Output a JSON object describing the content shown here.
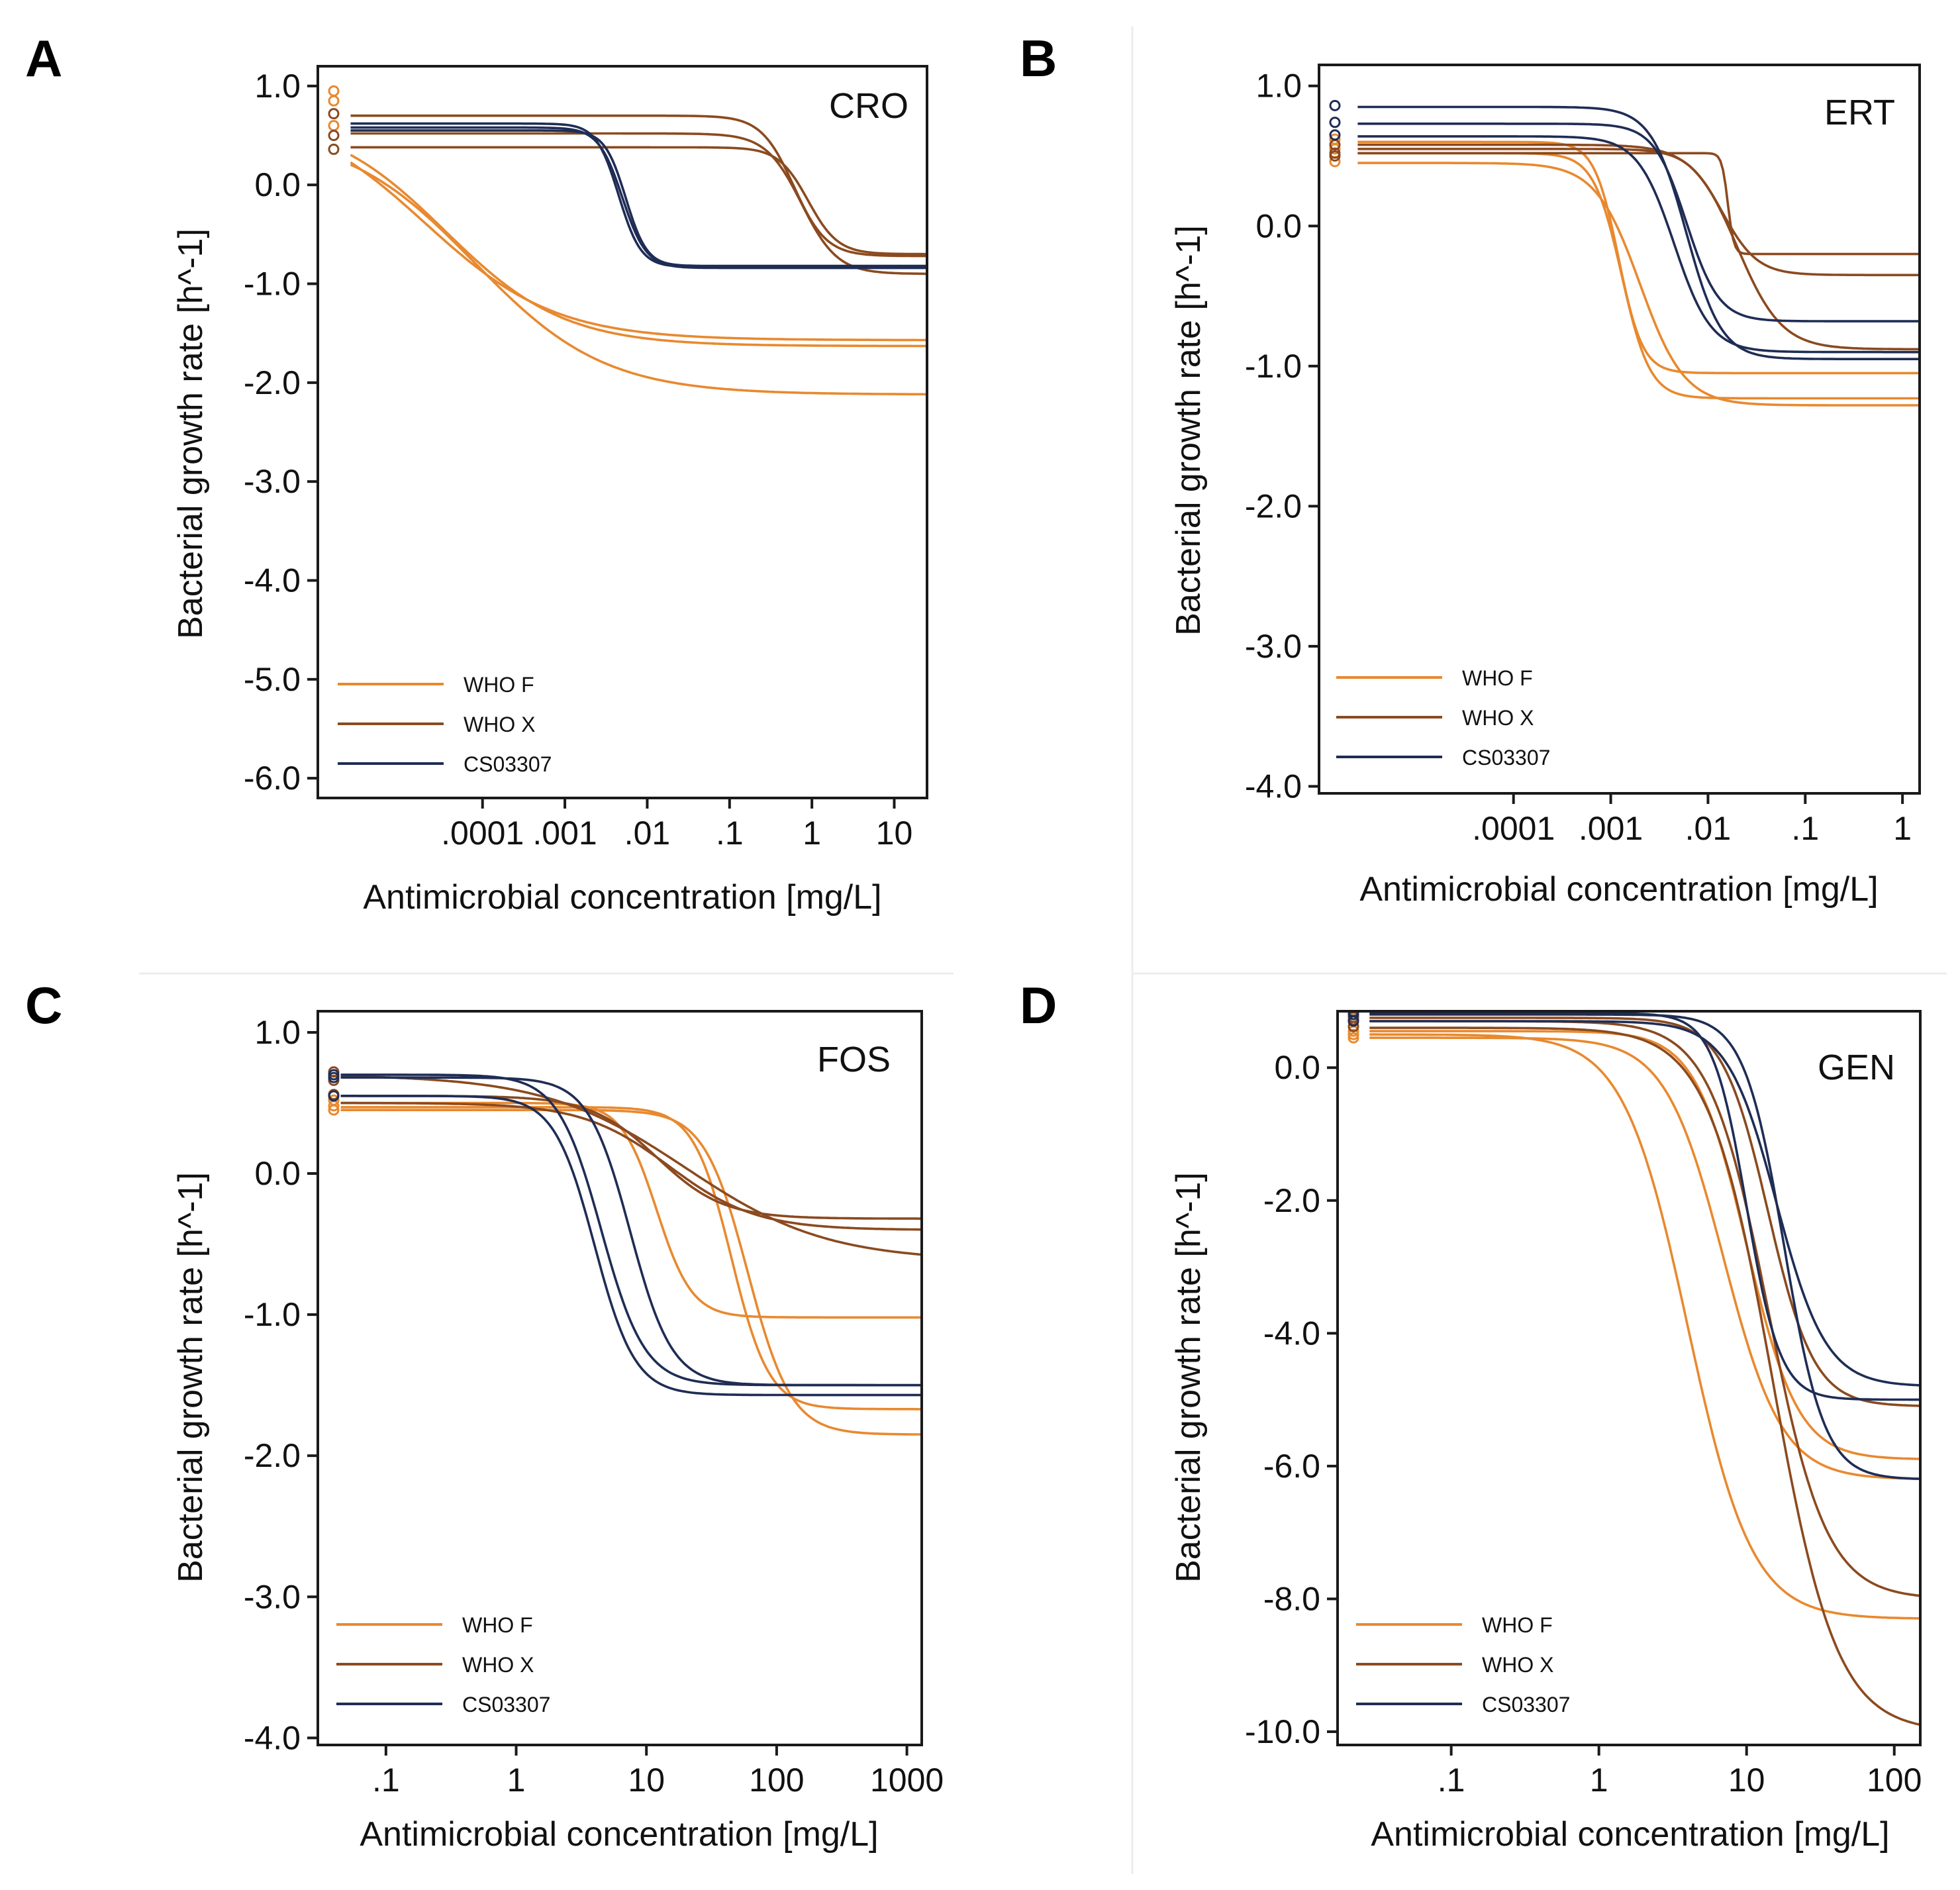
{
  "colors": {
    "who_f": "#e8892f",
    "who_x": "#8b4a1f",
    "cs03307": "#1f2d55"
  },
  "legend": [
    {
      "label": "WHO F",
      "color_key": "who_f"
    },
    {
      "label": "WHO X",
      "color_key": "who_x"
    },
    {
      "label": "CS03307",
      "color_key": "cs03307"
    }
  ],
  "axis_titles": {
    "xlabel": "Antimicrobial concentration [mg/L]",
    "ylabel": "Bacterial growth rate [h^-1]"
  },
  "chart_data": [
    {
      "type": "line",
      "panel_letter": "A",
      "title": "CRO",
      "xscale": "log10",
      "xlim": [
        1e-06,
        25
      ],
      "ylim": [
        -6.2,
        1.2
      ],
      "xticks": [
        {
          "value": 0.0001,
          "label": ".0001"
        },
        {
          "value": 0.001,
          "label": ".001"
        },
        {
          "value": 0.01,
          "label": ".01"
        },
        {
          "value": 0.1,
          "label": ".1"
        },
        {
          "value": 1,
          "label": "1"
        },
        {
          "value": 10,
          "label": "10"
        }
      ],
      "yticks": [
        {
          "value": 1,
          "label": "1.0"
        },
        {
          "value": 0,
          "label": "0.0"
        },
        {
          "value": -1,
          "label": "-1.0"
        },
        {
          "value": -2,
          "label": "-2.0"
        },
        {
          "value": -3,
          "label": "-3.0"
        },
        {
          "value": -4,
          "label": "-4.0"
        },
        {
          "value": -5,
          "label": "-5.0"
        },
        {
          "value": -6,
          "label": "-6.0"
        }
      ],
      "series": [
        {
          "name": "WHO F",
          "group": "who_f",
          "emax_start": 0.8,
          "emin": -1.57,
          "ec50": 2e-05,
          "hill": 0.55,
          "marker": 0.95,
          "x_start": 2.5e-06
        },
        {
          "name": "WHO F",
          "group": "who_f",
          "emax_start": 0.7,
          "emin": -1.63,
          "ec50": 3.5e-05,
          "hill": 0.6,
          "marker": 0.85,
          "x_start": 2.5e-06
        },
        {
          "name": "WHO F",
          "group": "who_f",
          "emax_start": 0.55,
          "emin": -2.12,
          "ec50": 8e-05,
          "hill": 0.55,
          "marker": 0.6,
          "x_start": 2.5e-06
        },
        {
          "name": "WHO X",
          "group": "who_x",
          "emax_start": 0.7,
          "emin": -0.72,
          "ec50": 0.6,
          "hill": 2.2,
          "marker": 0.72,
          "x_start": 2.5e-06
        },
        {
          "name": "WHO X",
          "group": "who_x",
          "emax_start": 0.52,
          "emin": -0.9,
          "ec50": 0.75,
          "hill": 2.0,
          "marker": 0.5,
          "x_start": 2.5e-06
        },
        {
          "name": "WHO X",
          "group": "who_x",
          "emax_start": 0.38,
          "emin": -0.7,
          "ec50": 0.9,
          "hill": 2.4,
          "marker": 0.36,
          "x_start": 2.5e-06
        },
        {
          "name": "CS03307",
          "group": "cs03307",
          "emax_start": 0.62,
          "emin": -0.83,
          "ec50": 0.0045,
          "hill": 3.2,
          "marker": null,
          "x_start": 2.5e-06
        },
        {
          "name": "CS03307",
          "group": "cs03307",
          "emax_start": 0.58,
          "emin": -0.84,
          "ec50": 0.005,
          "hill": 3.0,
          "marker": null,
          "x_start": 2.5e-06
        },
        {
          "name": "CS03307",
          "group": "cs03307",
          "emax_start": 0.55,
          "emin": -0.82,
          "ec50": 0.0055,
          "hill": 3.4,
          "marker": null,
          "x_start": 2.5e-06
        }
      ]
    },
    {
      "type": "line",
      "panel_letter": "B",
      "title": "ERT",
      "xscale": "log10",
      "xlim": [
        1e-06,
        1.5
      ],
      "ylim": [
        -4.05,
        1.15
      ],
      "xticks": [
        {
          "value": 0.0001,
          "label": ".0001"
        },
        {
          "value": 0.001,
          "label": ".001"
        },
        {
          "value": 0.01,
          "label": ".01"
        },
        {
          "value": 0.1,
          "label": ".1"
        },
        {
          "value": 1,
          "label": "1"
        }
      ],
      "yticks": [
        {
          "value": 1,
          "label": "1.0"
        },
        {
          "value": 0,
          "label": "0.0"
        },
        {
          "value": -1,
          "label": "-1.0"
        },
        {
          "value": -2,
          "label": "-2.0"
        },
        {
          "value": -3,
          "label": "-3.0"
        },
        {
          "value": -4,
          "label": "-4.0"
        }
      ],
      "series": [
        {
          "name": "WHO F",
          "group": "who_f",
          "emax_start": 0.6,
          "emin": -1.05,
          "ec50": 0.0012,
          "hill": 3.5,
          "marker": 0.62,
          "x_start": 2.5e-06
        },
        {
          "name": "WHO F",
          "group": "who_f",
          "emax_start": 0.52,
          "emin": -1.23,
          "ec50": 0.0013,
          "hill": 3.0,
          "marker": 0.55,
          "x_start": 2.5e-06
        },
        {
          "name": "WHO F",
          "group": "who_f",
          "emax_start": 0.45,
          "emin": -1.28,
          "ec50": 0.002,
          "hill": 1.9,
          "marker": 0.46,
          "x_start": 2.5e-06
        },
        {
          "name": "WHO X",
          "group": "who_x",
          "emax_start": 0.52,
          "emin": -0.2,
          "ec50": 0.016,
          "hill": 14.0,
          "marker": 0.52,
          "x_start": 2.5e-06
        },
        {
          "name": "WHO X",
          "group": "who_x",
          "emax_start": 0.55,
          "emin": -0.35,
          "ec50": 0.014,
          "hill": 2.4,
          "marker": 0.58,
          "x_start": 2.5e-06
        },
        {
          "name": "WHO X",
          "group": "who_x",
          "emax_start": 0.58,
          "emin": -0.88,
          "ec50": 0.02,
          "hill": 1.9,
          "marker": 0.5,
          "x_start": 2.5e-06
        },
        {
          "name": "CS03307",
          "group": "cs03307",
          "emax_start": 0.85,
          "emin": -0.95,
          "ec50": 0.006,
          "hill": 2.4,
          "marker": 0.86,
          "x_start": 2.5e-06
        },
        {
          "name": "CS03307",
          "group": "cs03307",
          "emax_start": 0.73,
          "emin": -0.68,
          "ec50": 0.006,
          "hill": 2.6,
          "marker": 0.74,
          "x_start": 2.5e-06
        },
        {
          "name": "CS03307",
          "group": "cs03307",
          "emax_start": 0.64,
          "emin": -0.9,
          "ec50": 0.0045,
          "hill": 2.3,
          "marker": 0.65,
          "x_start": 2.5e-06
        }
      ]
    },
    {
      "type": "line",
      "panel_letter": "C",
      "title": "FOS",
      "xscale": "log10",
      "xlim": [
        0.03,
        1300
      ],
      "ylim": [
        -4.05,
        1.15
      ],
      "xticks": [
        {
          "value": 0.1,
          "label": ".1"
        },
        {
          "value": 1,
          "label": "1"
        },
        {
          "value": 10,
          "label": "10"
        },
        {
          "value": 100,
          "label": "100"
        },
        {
          "value": 1000,
          "label": "1000"
        }
      ],
      "yticks": [
        {
          "value": 1,
          "label": "1.0"
        },
        {
          "value": 0,
          "label": "0.0"
        },
        {
          "value": -1,
          "label": "-1.0"
        },
        {
          "value": -2,
          "label": "-2.0"
        },
        {
          "value": -3,
          "label": "-3.0"
        },
        {
          "value": -4,
          "label": "-4.0"
        }
      ],
      "series": [
        {
          "name": "WHO F",
          "group": "who_f",
          "emax_start": 0.5,
          "emin": -1.02,
          "ec50": 12,
          "hill": 3.2,
          "marker": 0.52,
          "x_start": 0.045
        },
        {
          "name": "WHO F",
          "group": "who_f",
          "emax_start": 0.47,
          "emin": -1.67,
          "ec50": 45,
          "hill": 3.0,
          "marker": 0.48,
          "x_start": 0.045
        },
        {
          "name": "WHO F",
          "group": "who_f",
          "emax_start": 0.45,
          "emin": -1.85,
          "ec50": 60,
          "hill": 2.6,
          "marker": 0.45,
          "x_start": 0.045
        },
        {
          "name": "WHO X",
          "group": "who_x",
          "emax_start": 0.55,
          "emin": -0.32,
          "ec50": 12,
          "hill": 1.7,
          "marker": 0.56,
          "x_start": 0.045
        },
        {
          "name": "WHO X",
          "group": "who_x",
          "emax_start": 0.5,
          "emin": -0.4,
          "ec50": 15,
          "hill": 1.3,
          "marker": 0.66,
          "x_start": 0.045
        },
        {
          "name": "WHO X",
          "group": "who_x",
          "emax_start": 0.7,
          "emin": -0.62,
          "ec50": 20,
          "hill": 0.8,
          "marker": 0.72,
          "x_start": 0.045
        },
        {
          "name": "CS03307",
          "group": "cs03307",
          "emax_start": 0.7,
          "emin": -1.5,
          "ec50": 4.5,
          "hill": 2.6,
          "marker": 0.7,
          "x_start": 0.045
        },
        {
          "name": "CS03307",
          "group": "cs03307",
          "emax_start": 0.68,
          "emin": -1.5,
          "ec50": 7.5,
          "hill": 2.7,
          "marker": 0.68,
          "x_start": 0.045
        },
        {
          "name": "CS03307",
          "group": "cs03307",
          "emax_start": 0.55,
          "emin": -1.57,
          "ec50": 4,
          "hill": 2.8,
          "marker": 0.55,
          "x_start": 0.045
        }
      ]
    },
    {
      "type": "line",
      "panel_letter": "D",
      "title": "GEN",
      "xscale": "log10",
      "xlim": [
        0.017,
        150
      ],
      "ylim": [
        -10.2,
        0.85
      ],
      "xticks": [
        {
          "value": 0.1,
          "label": ".1"
        },
        {
          "value": 1,
          "label": "1"
        },
        {
          "value": 10,
          "label": "10"
        },
        {
          "value": 100,
          "label": "100"
        }
      ],
      "yticks": [
        {
          "value": 0,
          "label": "0.0"
        },
        {
          "value": -2,
          "label": "-2.0"
        },
        {
          "value": -4,
          "label": "-4.0"
        },
        {
          "value": -6,
          "label": "-6.0"
        },
        {
          "value": -8,
          "label": "-8.0"
        },
        {
          "value": -10,
          "label": "-10.0"
        }
      ],
      "series": [
        {
          "name": "WHO F",
          "group": "who_f",
          "emax_start": 0.5,
          "emin": -8.3,
          "ec50": 4,
          "hill": 2.0,
          "marker": 0.5,
          "x_start": 0.028
        },
        {
          "name": "WHO F",
          "group": "who_f",
          "emax_start": 0.45,
          "emin": -6.2,
          "ec50": 7,
          "hill": 2.2,
          "marker": 0.45,
          "x_start": 0.028
        },
        {
          "name": "WHO F",
          "group": "who_f",
          "emax_start": 0.55,
          "emin": -5.9,
          "ec50": 10,
          "hill": 2.5,
          "marker": 0.55,
          "x_start": 0.028
        },
        {
          "name": "WHO X",
          "group": "who_x",
          "emax_start": 0.6,
          "emin": -10,
          "ec50": 15,
          "hill": 2.0,
          "marker": 0.62,
          "x_start": 0.028
        },
        {
          "name": "WHO X",
          "group": "who_x",
          "emax_start": 0.7,
          "emin": -8,
          "ec50": 14,
          "hill": 2.2,
          "marker": 0.72,
          "x_start": 0.028
        },
        {
          "name": "WHO X",
          "group": "who_x",
          "emax_start": 0.75,
          "emin": -5.1,
          "ec50": 14,
          "hill": 2.8,
          "marker": 0.76,
          "x_start": 0.028
        },
        {
          "name": "CS03307",
          "group": "cs03307",
          "emax_start": 0.82,
          "emin": -5.0,
          "ec50": 10,
          "hill": 3.8,
          "marker": 0.84,
          "x_start": 0.028
        },
        {
          "name": "CS03307",
          "group": "cs03307",
          "emax_start": 0.8,
          "emin": -6.2,
          "ec50": 18,
          "hill": 3.2,
          "marker": 0.8,
          "x_start": 0.028
        },
        {
          "name": "CS03307",
          "group": "cs03307",
          "emax_start": 0.7,
          "emin": -4.8,
          "ec50": 16,
          "hill": 2.6,
          "marker": 0.7,
          "x_start": 0.028
        }
      ]
    }
  ]
}
